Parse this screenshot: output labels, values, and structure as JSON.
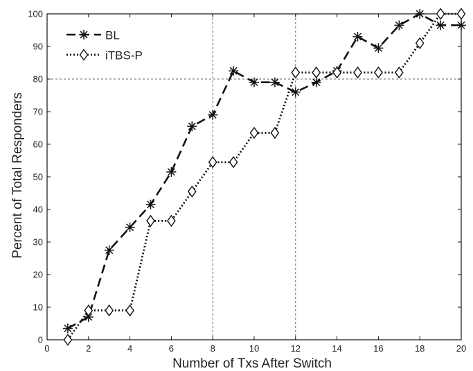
{
  "chart_data": {
    "type": "line",
    "title": "",
    "xlabel": "Number of Txs After Switch",
    "ylabel": "Percent of Total Responders",
    "xlim": [
      0,
      20
    ],
    "ylim": [
      0,
      100
    ],
    "xticks": [
      0,
      2,
      4,
      6,
      8,
      10,
      12,
      14,
      16,
      18,
      20
    ],
    "yticks": [
      0,
      10,
      20,
      30,
      40,
      50,
      60,
      70,
      80,
      90,
      100
    ],
    "grid": false,
    "reference_lines": {
      "x": [
        8,
        12
      ],
      "y": [
        80
      ]
    },
    "legend_position": "top-left",
    "series": [
      {
        "name": "BL",
        "marker": "asterisk",
        "line_style": "dashed",
        "color": "#111111",
        "x": [
          1,
          2,
          3,
          4,
          5,
          6,
          7,
          8,
          9,
          10,
          11,
          12,
          13,
          14,
          15,
          16,
          17,
          18,
          19,
          20
        ],
        "y": [
          3.5,
          7,
          27.5,
          34.5,
          41.5,
          51.5,
          65.5,
          69,
          82.5,
          79,
          79,
          76,
          79,
          82.5,
          93,
          89.5,
          96.5,
          100,
          96.5,
          96.5
        ]
      },
      {
        "name": "iTBS-P",
        "marker": "diamond",
        "line_style": "dotted",
        "color": "#111111",
        "x": [
          1,
          2,
          3,
          4,
          5,
          6,
          7,
          8,
          9,
          10,
          11,
          12,
          13,
          14,
          15,
          16,
          17,
          18,
          19,
          20
        ],
        "y": [
          0,
          9,
          9,
          9,
          36.5,
          36.5,
          45.5,
          54.5,
          54.5,
          63.5,
          63.5,
          82,
          82,
          82,
          82,
          82,
          82,
          91,
          100,
          100
        ]
      }
    ]
  }
}
